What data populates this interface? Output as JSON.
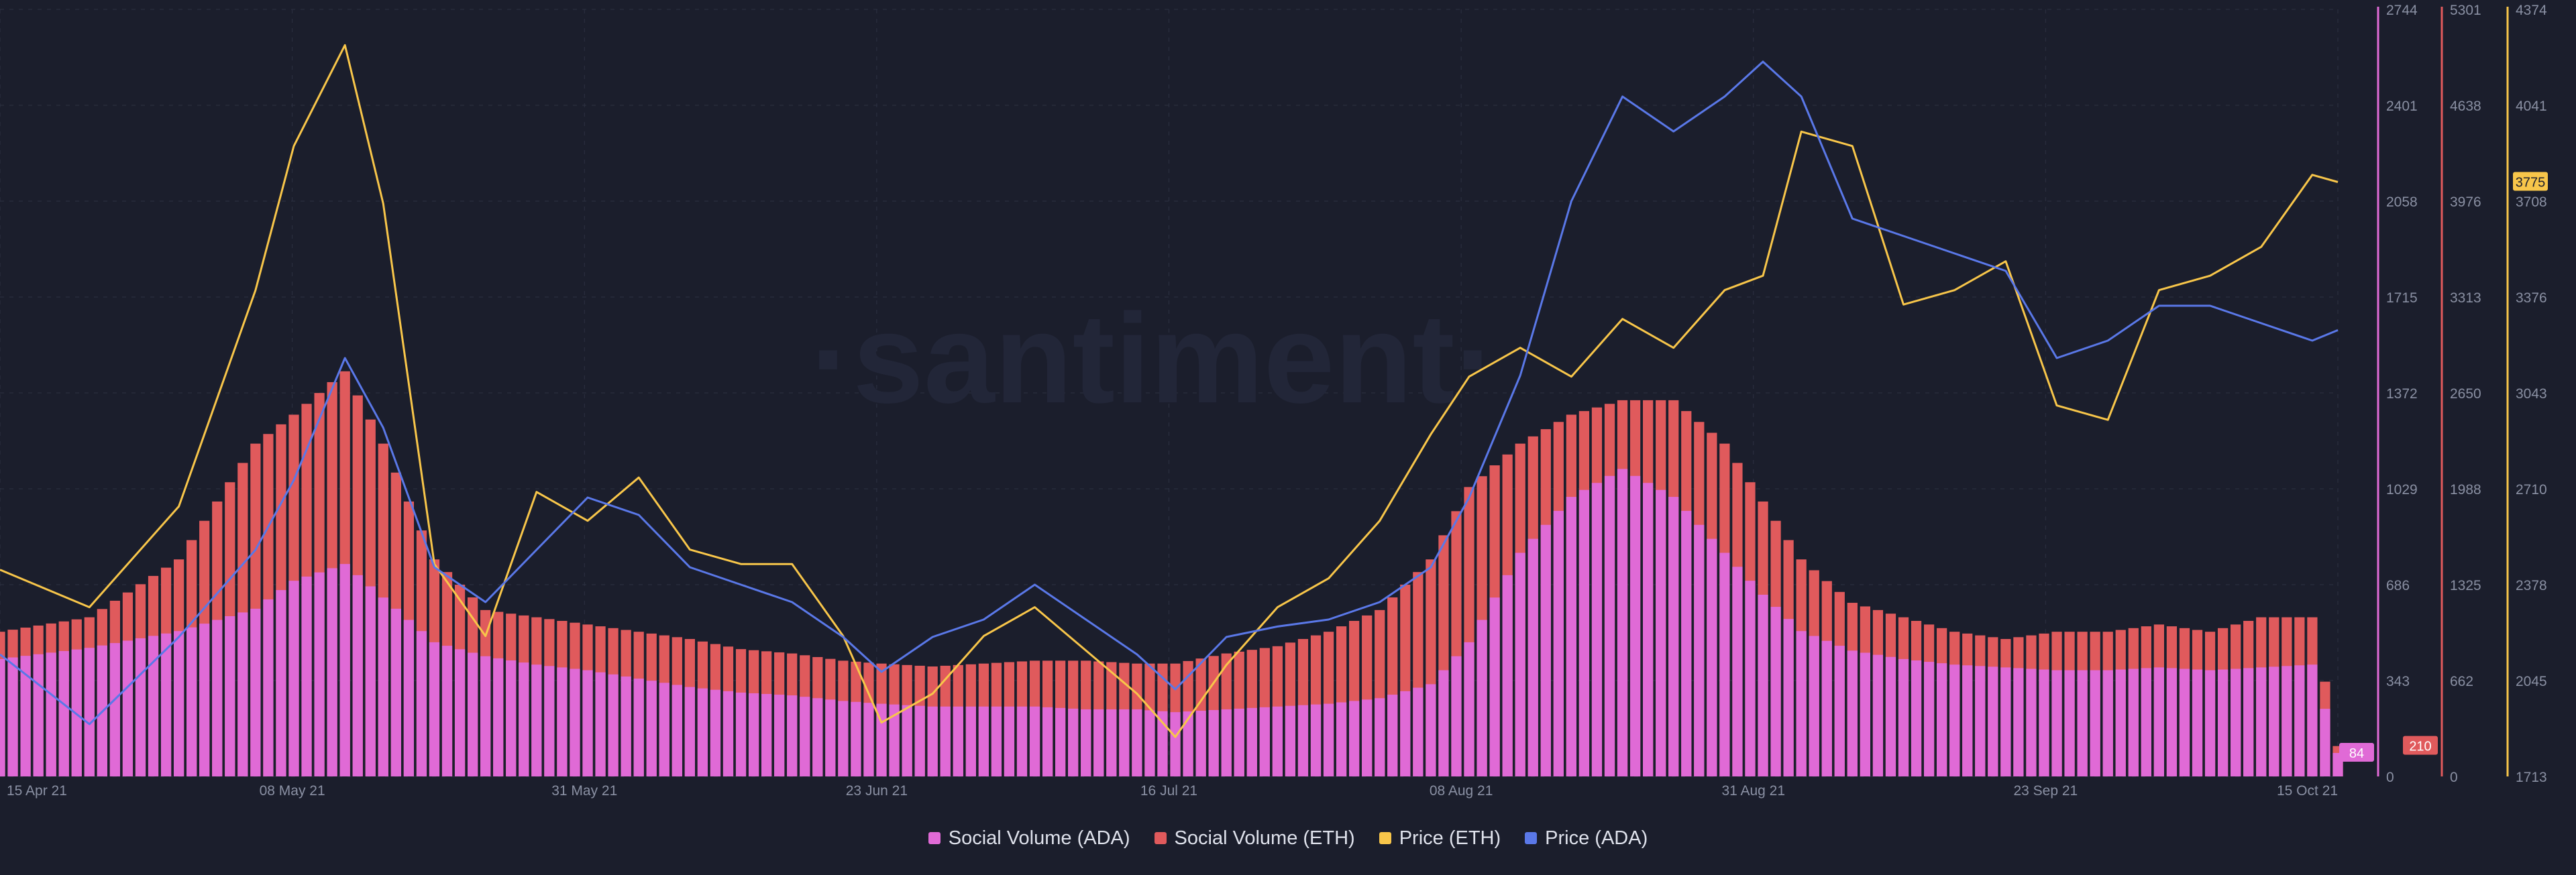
{
  "watermark": "·santiment·",
  "colors": {
    "background": "#1b1e2c",
    "social_ada": "#e06ad6",
    "social_eth": "#e05a5c",
    "price_eth": "#f8c64a",
    "price_ada": "#5a78e8",
    "grid": "#2c3142",
    "axis_text": "#8a90a3"
  },
  "axes": {
    "social_ada": {
      "ticks": [
        "0",
        "343",
        "686",
        "1029",
        "1372",
        "1715",
        "2058",
        "2401",
        "2744"
      ],
      "min": 0,
      "max": 2744,
      "current": "84"
    },
    "social_eth": {
      "ticks": [
        "0",
        "662",
        "1325",
        "1988",
        "2650",
        "3313",
        "3976",
        "4638",
        "5301"
      ],
      "min": 0,
      "max": 5301,
      "current": "210"
    },
    "price_eth": {
      "ticks": [
        "1713",
        "2045",
        "2378",
        "2710",
        "3043",
        "3376",
        "3708",
        "4041",
        "4374"
      ],
      "min": 1713,
      "max": 4374,
      "current": "3775"
    }
  },
  "x_ticks": [
    "15 Apr 21",
    "08 May 21",
    "31 May 21",
    "23 Jun 21",
    "16 Jul 21",
    "08 Aug 21",
    "31 Aug 21",
    "23 Sep 21",
    "15 Oct 21"
  ],
  "legend": [
    {
      "label": "Social Volume (ADA)",
      "color": "#e06ad6"
    },
    {
      "label": "Social Volume (ETH)",
      "color": "#e05a5c"
    },
    {
      "label": "Price (ETH)",
      "color": "#f8c64a"
    },
    {
      "label": "Price (ADA)",
      "color": "#5a78e8"
    }
  ],
  "chart_data": {
    "type": "line",
    "x_range": [
      "2021-04-15",
      "2021-10-15"
    ],
    "series": [
      {
        "name": "Price (ETH)",
        "kind": "line",
        "axis": "price_eth",
        "x": [
          "2021-04-15",
          "2021-04-22",
          "2021-04-29",
          "2021-05-05",
          "2021-05-08",
          "2021-05-12",
          "2021-05-15",
          "2021-05-19",
          "2021-05-23",
          "2021-05-27",
          "2021-05-31",
          "2021-06-04",
          "2021-06-08",
          "2021-06-12",
          "2021-06-16",
          "2021-06-20",
          "2021-06-23",
          "2021-06-27",
          "2021-07-01",
          "2021-07-05",
          "2021-07-09",
          "2021-07-13",
          "2021-07-16",
          "2021-07-20",
          "2021-07-24",
          "2021-07-28",
          "2021-08-01",
          "2021-08-05",
          "2021-08-08",
          "2021-08-12",
          "2021-08-16",
          "2021-08-20",
          "2021-08-24",
          "2021-08-28",
          "2021-08-31",
          "2021-09-03",
          "2021-09-07",
          "2021-09-11",
          "2021-09-15",
          "2021-09-19",
          "2021-09-23",
          "2021-09-27",
          "2021-10-01",
          "2021-10-05",
          "2021-10-09",
          "2021-10-13",
          "2021-10-15"
        ],
        "values": [
          2430,
          2300,
          2650,
          3400,
          3900,
          4250,
          3700,
          2450,
          2200,
          2700,
          2600,
          2750,
          2500,
          2450,
          2450,
          2200,
          1900,
          2000,
          2200,
          2300,
          2150,
          2000,
          1850,
          2100,
          2300,
          2400,
          2600,
          2900,
          3100,
          3200,
          3100,
          3300,
          3200,
          3400,
          3450,
          3950,
          3900,
          3350,
          3400,
          3500,
          3000,
          2950,
          3400,
          3450,
          3550,
          3800,
          3775
        ]
      },
      {
        "name": "Price (ADA)",
        "kind": "line",
        "axis": "price_ada",
        "x": [
          "2021-04-15",
          "2021-04-22",
          "2021-04-29",
          "2021-05-05",
          "2021-05-08",
          "2021-05-12",
          "2021-05-15",
          "2021-05-19",
          "2021-05-23",
          "2021-05-27",
          "2021-05-31",
          "2021-06-04",
          "2021-06-08",
          "2021-06-12",
          "2021-06-16",
          "2021-06-20",
          "2021-06-23",
          "2021-06-27",
          "2021-07-01",
          "2021-07-05",
          "2021-07-09",
          "2021-07-13",
          "2021-07-16",
          "2021-07-20",
          "2021-07-24",
          "2021-07-28",
          "2021-08-01",
          "2021-08-05",
          "2021-08-08",
          "2021-08-12",
          "2021-08-16",
          "2021-08-20",
          "2021-08-24",
          "2021-08-28",
          "2021-08-31",
          "2021-09-03",
          "2021-09-07",
          "2021-09-11",
          "2021-09-15",
          "2021-09-19",
          "2021-09-23",
          "2021-09-27",
          "2021-10-01",
          "2021-10-05",
          "2021-10-09",
          "2021-10-13",
          "2021-10-15"
        ],
        "values": [
          1.25,
          1.05,
          1.3,
          1.55,
          1.75,
          2.1,
          1.9,
          1.5,
          1.4,
          1.55,
          1.7,
          1.65,
          1.5,
          1.45,
          1.4,
          1.3,
          1.2,
          1.3,
          1.35,
          1.45,
          1.35,
          1.25,
          1.15,
          1.3,
          1.33,
          1.35,
          1.4,
          1.5,
          1.7,
          2.05,
          2.55,
          2.85,
          2.75,
          2.85,
          2.95,
          2.85,
          2.5,
          2.45,
          2.4,
          2.35,
          2.1,
          2.15,
          2.25,
          2.25,
          2.2,
          2.15,
          2.18
        ]
      },
      {
        "name": "Social Volume (ETH)",
        "kind": "bar",
        "axis": "social_eth",
        "x": [
          "2021-04-15",
          "2021-04-22",
          "2021-04-29",
          "2021-05-05",
          "2021-05-08",
          "2021-05-12",
          "2021-05-15",
          "2021-05-19",
          "2021-05-23",
          "2021-05-27",
          "2021-05-31",
          "2021-06-04",
          "2021-06-08",
          "2021-06-12",
          "2021-06-16",
          "2021-06-20",
          "2021-06-23",
          "2021-06-27",
          "2021-07-01",
          "2021-07-05",
          "2021-07-09",
          "2021-07-13",
          "2021-07-16",
          "2021-07-20",
          "2021-07-24",
          "2021-07-28",
          "2021-08-01",
          "2021-08-05",
          "2021-08-08",
          "2021-08-12",
          "2021-08-16",
          "2021-08-20",
          "2021-08-24",
          "2021-08-28",
          "2021-08-31",
          "2021-09-03",
          "2021-09-07",
          "2021-09-11",
          "2021-09-15",
          "2021-09-19",
          "2021-09-23",
          "2021-09-27",
          "2021-10-01",
          "2021-10-05",
          "2021-10-09",
          "2021-10-13",
          "2021-10-15"
        ],
        "values": [
          1000,
          1100,
          1500,
          2300,
          2500,
          2800,
          2300,
          1500,
          1150,
          1100,
          1050,
          1000,
          950,
          880,
          850,
          800,
          780,
          760,
          780,
          800,
          800,
          780,
          780,
          850,
          900,
          1000,
          1150,
          1500,
          2000,
          2300,
          2500,
          2600,
          2600,
          2300,
          1900,
          1500,
          1200,
          1100,
          1000,
          950,
          1000,
          1000,
          1050,
          1000,
          1100,
          1100,
          210
        ]
      },
      {
        "name": "Social Volume (ADA)",
        "kind": "bar",
        "axis": "social_ada",
        "x": [
          "2021-04-15",
          "2021-04-22",
          "2021-04-29",
          "2021-05-05",
          "2021-05-08",
          "2021-05-12",
          "2021-05-15",
          "2021-05-19",
          "2021-05-23",
          "2021-05-27",
          "2021-05-31",
          "2021-06-04",
          "2021-06-08",
          "2021-06-12",
          "2021-06-16",
          "2021-06-20",
          "2021-06-23",
          "2021-06-27",
          "2021-07-01",
          "2021-07-05",
          "2021-07-09",
          "2021-07-13",
          "2021-07-16",
          "2021-07-20",
          "2021-07-24",
          "2021-07-28",
          "2021-08-01",
          "2021-08-05",
          "2021-08-08",
          "2021-08-12",
          "2021-08-16",
          "2021-08-20",
          "2021-08-24",
          "2021-08-28",
          "2021-08-31",
          "2021-09-03",
          "2021-09-07",
          "2021-09-11",
          "2021-09-15",
          "2021-09-19",
          "2021-09-23",
          "2021-09-27",
          "2021-10-01",
          "2021-10-05",
          "2021-10-09",
          "2021-10-13",
          "2021-10-15"
        ],
        "values": [
          420,
          460,
          520,
          600,
          700,
          760,
          640,
          480,
          430,
          400,
          380,
          350,
          320,
          300,
          290,
          270,
          260,
          250,
          250,
          250,
          240,
          240,
          230,
          240,
          250,
          260,
          280,
          330,
          480,
          800,
          1000,
          1100,
          1000,
          800,
          650,
          520,
          450,
          420,
          400,
          390,
          380,
          380,
          390,
          380,
          390,
          400,
          84
        ]
      }
    ]
  }
}
